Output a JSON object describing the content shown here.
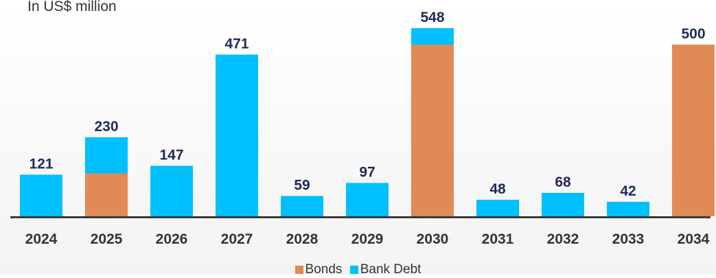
{
  "chart_data": {
    "type": "bar",
    "stacked": true,
    "subtitle": "In US$ million",
    "categories": [
      "2024",
      "2025",
      "2026",
      "2027",
      "2028",
      "2029",
      "2030",
      "2031",
      "2032",
      "2033",
      "2034"
    ],
    "series": [
      {
        "name": "Bonds",
        "color": "#E08A55",
        "values": [
          0,
          125,
          0,
          0,
          0,
          0,
          500,
          0,
          0,
          0,
          500
        ]
      },
      {
        "name": "Bank Debt",
        "color": "#00BFFF",
        "values": [
          121,
          105,
          147,
          471,
          59,
          97,
          48,
          48,
          68,
          42,
          0
        ]
      }
    ],
    "totals": [
      "121",
      "230",
      "147",
      "471",
      "59",
      "97",
      "548",
      "48",
      "68",
      "42",
      "500"
    ],
    "ylim": [
      0,
      600
    ],
    "grid": false,
    "legend_position": "bottom"
  }
}
